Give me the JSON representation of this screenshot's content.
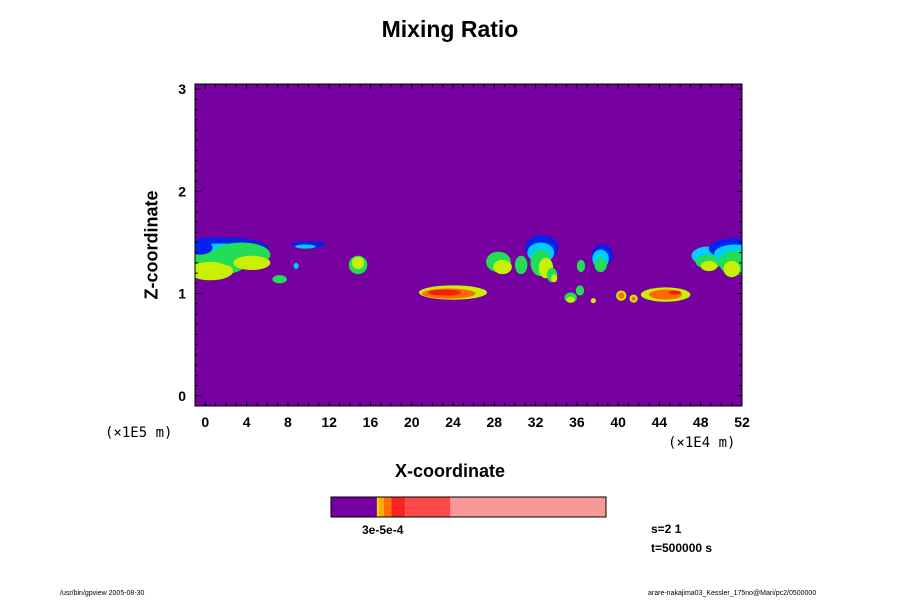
{
  "chart_data": {
    "type": "heatmap",
    "title": "Mixing Ratio",
    "xlabel": "X-coordinate",
    "ylabel": "Z-coordinate",
    "x_scale_note": "(×1E4 m)",
    "z_scale_note": "(×1E5 m)",
    "xlim": [
      -1,
      52
    ],
    "ylim": [
      -0.1,
      3.05
    ],
    "x_ticks": [
      "0",
      "4",
      "8",
      "12",
      "16",
      "20",
      "24",
      "28",
      "32",
      "36",
      "40",
      "44",
      "48",
      "52"
    ],
    "y_ticks": [
      "0",
      "1",
      "2",
      "3"
    ],
    "background_color": "#7700a0",
    "colorbar": {
      "label": "1e-5 2e-5 3e-4 (overlapping)",
      "label_text": "3e-5e-4",
      "segments": [
        {
          "color": "#7700a0",
          "fraction": 0.167
        },
        {
          "color": "#f0e000",
          "fraction": 0.007
        },
        {
          "color": "#ffaa00",
          "fraction": 0.018
        },
        {
          "color": "#ff7000",
          "fraction": 0.027
        },
        {
          "color": "#ff2020",
          "fraction": 0.051
        },
        {
          "color": "#ff4848",
          "fraction": 0.164
        },
        {
          "color": "#fa9898",
          "fraction": 0.566
        }
      ]
    },
    "cloud_colors": {
      "outer": "#0022ee",
      "mid": "#00ccff",
      "inner": "#22dd55",
      "core": "#c8f000",
      "hot": "#ff6a00",
      "hottest": "#ee2200"
    }
  },
  "labels": {
    "x_scale": "(×1E4 m)",
    "z_scale": "(×1E5 m)",
    "colorbar_text": "3e-5e-4",
    "step": "s=2 1",
    "time": "t=500000 s",
    "footer_left": "/usr/bin/gpview 2005-08-30",
    "footer_right": "arare-nakajima03_Kessler_175no@Mari/pc2/0500000"
  }
}
